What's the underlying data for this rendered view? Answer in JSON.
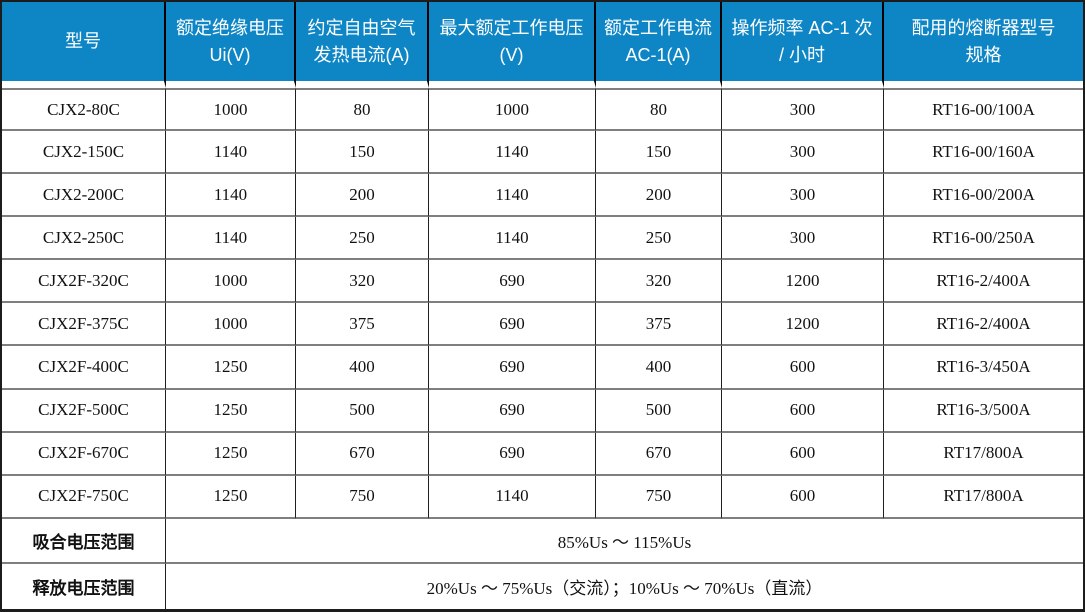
{
  "colors": {
    "header_bg": "#0E86C5",
    "header_text": "#FFFFFF",
    "grid_horizontal": "#7F7F7F",
    "grid_vertical": "#1F1F1F",
    "body_text": "#111111"
  },
  "table": {
    "columns": [
      "型号",
      "额定绝缘电压 Ui(V)",
      "约定自由空气发热电流(A)",
      "最大额定工作电压(V)",
      "额定工作电流 AC-1(A)",
      "操作频率 AC-1 次 / 小时",
      "配用的熔断器型号规格"
    ],
    "rows": [
      [
        "CJX2-80C",
        "1000",
        "80",
        "1000",
        "80",
        "300",
        "RT16-00/100A"
      ],
      [
        "CJX2-150C",
        "1140",
        "150",
        "1140",
        "150",
        "300",
        "RT16-00/160A"
      ],
      [
        "CJX2-200C",
        "1140",
        "200",
        "1140",
        "200",
        "300",
        "RT16-00/200A"
      ],
      [
        "CJX2-250C",
        "1140",
        "250",
        "1140",
        "250",
        "300",
        "RT16-00/250A"
      ],
      [
        "CJX2F-320C",
        "1000",
        "320",
        "690",
        "320",
        "1200",
        "RT16-2/400A"
      ],
      [
        "CJX2F-375C",
        "1000",
        "375",
        "690",
        "375",
        "1200",
        "RT16-2/400A"
      ],
      [
        "CJX2F-400C",
        "1250",
        "400",
        "690",
        "400",
        "600",
        "RT16-3/450A"
      ],
      [
        "CJX2F-500C",
        "1250",
        "500",
        "690",
        "500",
        "600",
        "RT16-3/500A"
      ],
      [
        "CJX2F-670C",
        "1250",
        "670",
        "690",
        "670",
        "600",
        "RT17/800A"
      ],
      [
        "CJX2F-750C",
        "1250",
        "750",
        "1140",
        "750",
        "600",
        "RT17/800A"
      ]
    ],
    "footer_rows": [
      {
        "label": "吸合电压范围",
        "value": "85%Us ～ 115%Us"
      },
      {
        "label": "释放电压范围",
        "value": "20%Us ～ 75%Us（交流）；10%Us ～ 70%Us（直流）"
      }
    ]
  }
}
